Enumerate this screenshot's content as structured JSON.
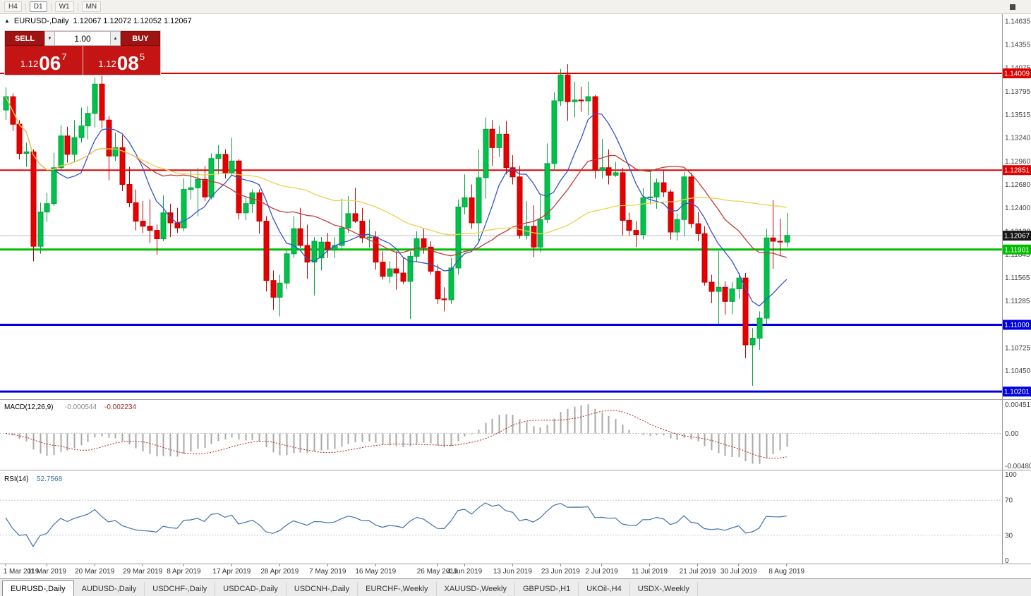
{
  "toolbar": {
    "timeframes": [
      "H4",
      "D1",
      "W1",
      "MN"
    ],
    "active": "D1"
  },
  "chart_header": {
    "marker": "▲",
    "title": "EURUSD-,Daily",
    "ohlc": "1.12067 1.12072 1.12052 1.12067"
  },
  "trade_panel": {
    "sell_label": "SELL",
    "buy_label": "BUY",
    "volume": "1.00",
    "sell_price": {
      "prefix": "1.12",
      "big": "06",
      "sup": "7"
    },
    "buy_price": {
      "prefix": "1.12",
      "big": "08",
      "sup": "5"
    }
  },
  "price_axis": {
    "labels": [
      "1.14635",
      "1.14355",
      "1.14075",
      "1.13795",
      "1.13515",
      "1.13240",
      "1.12960",
      "1.12680",
      "1.12400",
      "1.12120",
      "1.11845",
      "1.11565",
      "1.11285",
      "1.10725",
      "1.10450"
    ]
  },
  "levels": [
    {
      "value": "1.14009",
      "price": 1.14009,
      "color": "#e00000",
      "thickness": 2,
      "name": "resistance-line-1"
    },
    {
      "value": "1.12851",
      "price": 1.12851,
      "color": "#e00000",
      "thickness": 2,
      "name": "resistance-line-2"
    },
    {
      "value": "1.11901",
      "price": 1.11901,
      "color": "#00bd00",
      "thickness": 3,
      "name": "support-line-green"
    },
    {
      "value": "1.11000",
      "price": 1.11,
      "color": "#0000dd",
      "thickness": 3,
      "name": "support-line-blue-1"
    },
    {
      "value": "1.10201",
      "price": 1.10201,
      "color": "#0000dd",
      "thickness": 3,
      "name": "support-line-blue-2"
    }
  ],
  "current_price": {
    "value": "1.12067",
    "price": 1.12067,
    "badge_color": "#161616",
    "line_color": "#bdbdbd"
  },
  "indicators": {
    "macd": {
      "label": "MACD(12,26,9)",
      "value_main": "-0.000544",
      "value_signal": "-0.002234",
      "scale_max": "0.004517",
      "scale_zero": "0.00",
      "scale_min": "-0.004806",
      "hist_color": "#a8a8a8",
      "signal_color": "#b22222"
    },
    "rsi": {
      "label": "RSI(14)",
      "value": "52.7568",
      "scale_top": "100",
      "scale_bottom": "0",
      "levels": [
        70,
        30
      ],
      "line_color": "#4070b0",
      "level_color": "#cccccc"
    }
  },
  "date_axis": {
    "ticks": [
      {
        "i": 0,
        "label": "1 Mar 2019"
      },
      {
        "i": 6,
        "label": "11 Mar 2019"
      },
      {
        "i": 13,
        "label": "20 Mar 2019"
      },
      {
        "i": 20,
        "label": "29 Mar 2019"
      },
      {
        "i": 26,
        "label": "8 Apr 2019"
      },
      {
        "i": 33,
        "label": "17 Apr 2019"
      },
      {
        "i": 40,
        "label": "28 Apr 2019"
      },
      {
        "i": 47,
        "label": "7 May 2019"
      },
      {
        "i": 54,
        "label": "16 May 2019"
      },
      {
        "i": 63,
        "label": "26 May 2019"
      },
      {
        "i": 67,
        "label": "4 Jun 2019"
      },
      {
        "i": 74,
        "label": "13 Jun 2019"
      },
      {
        "i": 81,
        "label": "23 Jun 2019"
      },
      {
        "i": 87,
        "label": "2 Jul 2019"
      },
      {
        "i": 94,
        "label": "11 Jul 2019"
      },
      {
        "i": 101,
        "label": "21 Jul 2019"
      },
      {
        "i": 107,
        "label": "30 Jul 2019"
      },
      {
        "i": 114,
        "label": "8 Aug 2019"
      }
    ]
  },
  "tabs": [
    {
      "label": "EURUSD-,Daily",
      "active": true
    },
    {
      "label": "AUDUSD-,Daily",
      "active": false
    },
    {
      "label": "USDCHF-,Daily",
      "active": false
    },
    {
      "label": "USDCAD-,Daily",
      "active": false
    },
    {
      "label": "USDCNH-,Daily",
      "active": false
    },
    {
      "label": "EURCHF-,Weekly",
      "active": false
    },
    {
      "label": "XAUUSD-,Weekly",
      "active": false
    },
    {
      "label": "GBPUSD-,H1",
      "active": false
    },
    {
      "label": "UKOil-,H4",
      "active": false
    },
    {
      "label": "USDX-,Weekly",
      "active": false
    }
  ],
  "chart_data": {
    "type": "candlestick",
    "symbol": "EURUSD",
    "timeframe": "Daily",
    "ylim": [
      1.1011,
      1.1472
    ],
    "colors": {
      "up": "#00c24a",
      "up_stroke": "#00a33f",
      "down": "#e60000",
      "down_stroke": "#c00000",
      "ma_fast": "#3353c9",
      "ma_mid": "#c03a3a",
      "ma_slow": "#eecf4e"
    },
    "moving_averages": [
      {
        "name": "ma-fast",
        "estimated_period": 8,
        "color": "#3353c9"
      },
      {
        "name": "ma-mid",
        "estimated_period": 20,
        "color": "#c03a3a"
      },
      {
        "name": "ma-slow",
        "estimated_period": 45,
        "color": "#eecf4e"
      }
    ],
    "candles": [
      [
        "2019-03-01",
        1.1357,
        1.1384,
        1.1345,
        1.1373
      ],
      [
        "2019-03-04",
        1.1373,
        1.1377,
        1.1332,
        1.134
      ],
      [
        "2019-03-05",
        1.134,
        1.1345,
        1.1298,
        1.1305
      ],
      [
        "2019-03-06",
        1.1305,
        1.1318,
        1.1289,
        1.1307
      ],
      [
        "2019-03-07",
        1.1307,
        1.131,
        1.1176,
        1.1194
      ],
      [
        "2019-03-08",
        1.1194,
        1.1246,
        1.1185,
        1.1235
      ],
      [
        "2019-03-11",
        1.1235,
        1.1258,
        1.1223,
        1.1245
      ],
      [
        "2019-03-12",
        1.1245,
        1.1306,
        1.1242,
        1.1288
      ],
      [
        "2019-03-13",
        1.1288,
        1.1339,
        1.1285,
        1.1326
      ],
      [
        "2019-03-14",
        1.1326,
        1.1337,
        1.1294,
        1.1304
      ],
      [
        "2019-03-15",
        1.1304,
        1.1345,
        1.1295,
        1.1324
      ],
      [
        "2019-03-18",
        1.1324,
        1.136,
        1.1318,
        1.1338
      ],
      [
        "2019-03-19",
        1.1338,
        1.1362,
        1.1322,
        1.1353
      ],
      [
        "2019-03-20",
        1.1353,
        1.1396,
        1.1336,
        1.1388
      ],
      [
        "2019-03-21",
        1.1388,
        1.1398,
        1.1335,
        1.1345
      ],
      [
        "2019-03-22",
        1.1345,
        1.135,
        1.1273,
        1.1302
      ],
      [
        "2019-03-25",
        1.1302,
        1.133,
        1.1296,
        1.1312
      ],
      [
        "2019-03-26",
        1.1312,
        1.1327,
        1.126,
        1.1268
      ],
      [
        "2019-03-27",
        1.1268,
        1.1289,
        1.1241,
        1.1246
      ],
      [
        "2019-03-28",
        1.1246,
        1.1262,
        1.1213,
        1.1224
      ],
      [
        "2019-03-29",
        1.1224,
        1.1248,
        1.121,
        1.1218
      ],
      [
        "2019-04-01",
        1.1218,
        1.125,
        1.1198,
        1.1213
      ],
      [
        "2019-04-02",
        1.1213,
        1.122,
        1.1184,
        1.1203
      ],
      [
        "2019-04-03",
        1.1203,
        1.1255,
        1.12,
        1.1234
      ],
      [
        "2019-04-04",
        1.1234,
        1.1245,
        1.1205,
        1.1222
      ],
      [
        "2019-04-05",
        1.1222,
        1.124,
        1.121,
        1.1216
      ],
      [
        "2019-04-08",
        1.1216,
        1.1275,
        1.1212,
        1.1262
      ],
      [
        "2019-04-09",
        1.1262,
        1.1285,
        1.125,
        1.1264
      ],
      [
        "2019-04-10",
        1.1264,
        1.1288,
        1.123,
        1.1274
      ],
      [
        "2019-04-11",
        1.1274,
        1.129,
        1.1248,
        1.1253
      ],
      [
        "2019-04-12",
        1.1253,
        1.1305,
        1.125,
        1.1299
      ],
      [
        "2019-04-15",
        1.1299,
        1.1315,
        1.128,
        1.1304
      ],
      [
        "2019-04-16",
        1.1304,
        1.131,
        1.1275,
        1.1282
      ],
      [
        "2019-04-17",
        1.1282,
        1.1324,
        1.1278,
        1.1296
      ],
      [
        "2019-04-18",
        1.1296,
        1.1298,
        1.1226,
        1.1234
      ],
      [
        "2019-04-19",
        1.1234,
        1.1252,
        1.1225,
        1.1245
      ],
      [
        "2019-04-22",
        1.1245,
        1.1262,
        1.1234,
        1.1258
      ],
      [
        "2019-04-23",
        1.1258,
        1.1262,
        1.1209,
        1.1224
      ],
      [
        "2019-04-24",
        1.1224,
        1.123,
        1.114,
        1.1153
      ],
      [
        "2019-04-25",
        1.1153,
        1.1165,
        1.1118,
        1.1133
      ],
      [
        "2019-04-26",
        1.1133,
        1.116,
        1.111,
        1.115
      ],
      [
        "2019-04-29",
        1.115,
        1.119,
        1.1143,
        1.1185
      ],
      [
        "2019-04-30",
        1.1185,
        1.123,
        1.118,
        1.1215
      ],
      [
        "2019-05-01",
        1.1215,
        1.124,
        1.1192,
        1.1195
      ],
      [
        "2019-05-02",
        1.1195,
        1.122,
        1.1155,
        1.1175
      ],
      [
        "2019-05-03",
        1.1175,
        1.1205,
        1.1135,
        1.12
      ],
      [
        "2019-05-06",
        1.118,
        1.1205,
        1.1165,
        1.1199
      ],
      [
        "2019-05-07",
        1.1199,
        1.121,
        1.118,
        1.119
      ],
      [
        "2019-05-08",
        1.119,
        1.1205,
        1.118,
        1.1195
      ],
      [
        "2019-05-09",
        1.1195,
        1.1251,
        1.119,
        1.1216
      ],
      [
        "2019-05-10",
        1.1216,
        1.1254,
        1.121,
        1.1233
      ],
      [
        "2019-05-13",
        1.1233,
        1.1264,
        1.1222,
        1.1224
      ],
      [
        "2019-05-14",
        1.1224,
        1.124,
        1.1198,
        1.1204
      ],
      [
        "2019-05-15",
        1.1204,
        1.1226,
        1.1192,
        1.1205
      ],
      [
        "2019-05-16",
        1.1205,
        1.1212,
        1.1166,
        1.1175
      ],
      [
        "2019-05-17",
        1.1175,
        1.1188,
        1.1154,
        1.1158
      ],
      [
        "2019-05-20",
        1.1158,
        1.1176,
        1.115,
        1.1167
      ],
      [
        "2019-05-21",
        1.1167,
        1.1188,
        1.1142,
        1.1162
      ],
      [
        "2019-05-22",
        1.1162,
        1.118,
        1.1149,
        1.1152
      ],
      [
        "2019-05-23",
        1.1152,
        1.1188,
        1.1107,
        1.1182
      ],
      [
        "2019-05-24",
        1.1182,
        1.1212,
        1.1175,
        1.1203
      ],
      [
        "2019-05-27",
        1.1203,
        1.1215,
        1.1185,
        1.1193
      ],
      [
        "2019-05-28",
        1.1193,
        1.12,
        1.116,
        1.1164
      ],
      [
        "2019-05-29",
        1.1164,
        1.1172,
        1.1125,
        1.1131
      ],
      [
        "2019-05-30",
        1.1131,
        1.1145,
        1.1116,
        1.113
      ],
      [
        "2019-05-31",
        1.113,
        1.118,
        1.1125,
        1.1168
      ],
      [
        "2019-06-03",
        1.1168,
        1.125,
        1.116,
        1.1241
      ],
      [
        "2019-06-04",
        1.1241,
        1.128,
        1.1232,
        1.1252
      ],
      [
        "2019-06-05",
        1.1252,
        1.1268,
        1.1215,
        1.1222
      ],
      [
        "2019-06-06",
        1.1222,
        1.131,
        1.12,
        1.1276
      ],
      [
        "2019-06-07",
        1.1276,
        1.1348,
        1.1251,
        1.1334
      ],
      [
        "2019-06-10",
        1.1334,
        1.1345,
        1.129,
        1.1312
      ],
      [
        "2019-06-11",
        1.1312,
        1.1338,
        1.1301,
        1.1328
      ],
      [
        "2019-06-12",
        1.1328,
        1.1344,
        1.128,
        1.1288
      ],
      [
        "2019-06-13",
        1.1288,
        1.1303,
        1.1268,
        1.1277
      ],
      [
        "2019-06-14",
        1.1277,
        1.129,
        1.1203,
        1.1207
      ],
      [
        "2019-06-17",
        1.1207,
        1.1248,
        1.1202,
        1.1218
      ],
      [
        "2019-06-18",
        1.1218,
        1.1243,
        1.1181,
        1.1193
      ],
      [
        "2019-06-19",
        1.1193,
        1.1255,
        1.1187,
        1.1226
      ],
      [
        "2019-06-20",
        1.1226,
        1.1317,
        1.1222,
        1.1293
      ],
      [
        "2019-06-21",
        1.1293,
        1.1378,
        1.1285,
        1.1368
      ],
      [
        "2019-06-24",
        1.1368,
        1.1406,
        1.1362,
        1.1399
      ],
      [
        "2019-06-25",
        1.1399,
        1.1412,
        1.1344,
        1.1367
      ],
      [
        "2019-06-26",
        1.1367,
        1.1391,
        1.1348,
        1.1369
      ],
      [
        "2019-06-27",
        1.1369,
        1.1385,
        1.1355,
        1.1368
      ],
      [
        "2019-06-28",
        1.1368,
        1.1391,
        1.1351,
        1.1373
      ],
      [
        "2019-07-01",
        1.1373,
        1.1375,
        1.1275,
        1.1285
      ],
      [
        "2019-07-02",
        1.1285,
        1.1322,
        1.1275,
        1.1288
      ],
      [
        "2019-07-03",
        1.1288,
        1.131,
        1.1268,
        1.1279
      ],
      [
        "2019-07-04",
        1.1279,
        1.1295,
        1.1277,
        1.1282
      ],
      [
        "2019-07-05",
        1.1282,
        1.1288,
        1.1207,
        1.1225
      ],
      [
        "2019-07-08",
        1.1225,
        1.1234,
        1.1207,
        1.1213
      ],
      [
        "2019-07-09",
        1.1213,
        1.1224,
        1.1193,
        1.1208
      ],
      [
        "2019-07-10",
        1.1208,
        1.1264,
        1.1202,
        1.1252
      ],
      [
        "2019-07-11",
        1.1252,
        1.1286,
        1.1244,
        1.1253
      ],
      [
        "2019-07-12",
        1.1253,
        1.1275,
        1.1239,
        1.127
      ],
      [
        "2019-07-15",
        1.127,
        1.1284,
        1.1253,
        1.1259
      ],
      [
        "2019-07-16",
        1.1259,
        1.1262,
        1.1202,
        1.1211
      ],
      [
        "2019-07-17",
        1.1211,
        1.1233,
        1.1201,
        1.1226
      ],
      [
        "2019-07-18",
        1.1226,
        1.1283,
        1.1206,
        1.1277
      ],
      [
        "2019-07-19",
        1.1277,
        1.1282,
        1.1216,
        1.1221
      ],
      [
        "2019-07-22",
        1.1221,
        1.1235,
        1.12,
        1.1209
      ],
      [
        "2019-07-23",
        1.1209,
        1.1218,
        1.1147,
        1.1151
      ],
      [
        "2019-07-24",
        1.1151,
        1.116,
        1.1126,
        1.114
      ],
      [
        "2019-07-25",
        1.114,
        1.1188,
        1.1101,
        1.1145
      ],
      [
        "2019-07-26",
        1.1145,
        1.1152,
        1.1112,
        1.1128
      ],
      [
        "2019-07-29",
        1.1128,
        1.1151,
        1.1113,
        1.1143
      ],
      [
        "2019-07-30",
        1.1143,
        1.1162,
        1.1131,
        1.1156
      ],
      [
        "2019-07-31",
        1.1156,
        1.1162,
        1.106,
        1.1076
      ],
      [
        "2019-08-01",
        1.1076,
        1.1096,
        1.1027,
        1.1084
      ],
      [
        "2019-08-02",
        1.1084,
        1.1116,
        1.107,
        1.1108
      ],
      [
        "2019-08-05",
        1.1108,
        1.1215,
        1.1101,
        1.1204
      ],
      [
        "2019-08-06",
        1.1204,
        1.1249,
        1.1167,
        1.12
      ],
      [
        "2019-08-07",
        1.12,
        1.1227,
        1.1183,
        1.1199
      ],
      [
        "2019-08-08",
        1.1199,
        1.1234,
        1.1193,
        1.1207
      ]
    ]
  }
}
